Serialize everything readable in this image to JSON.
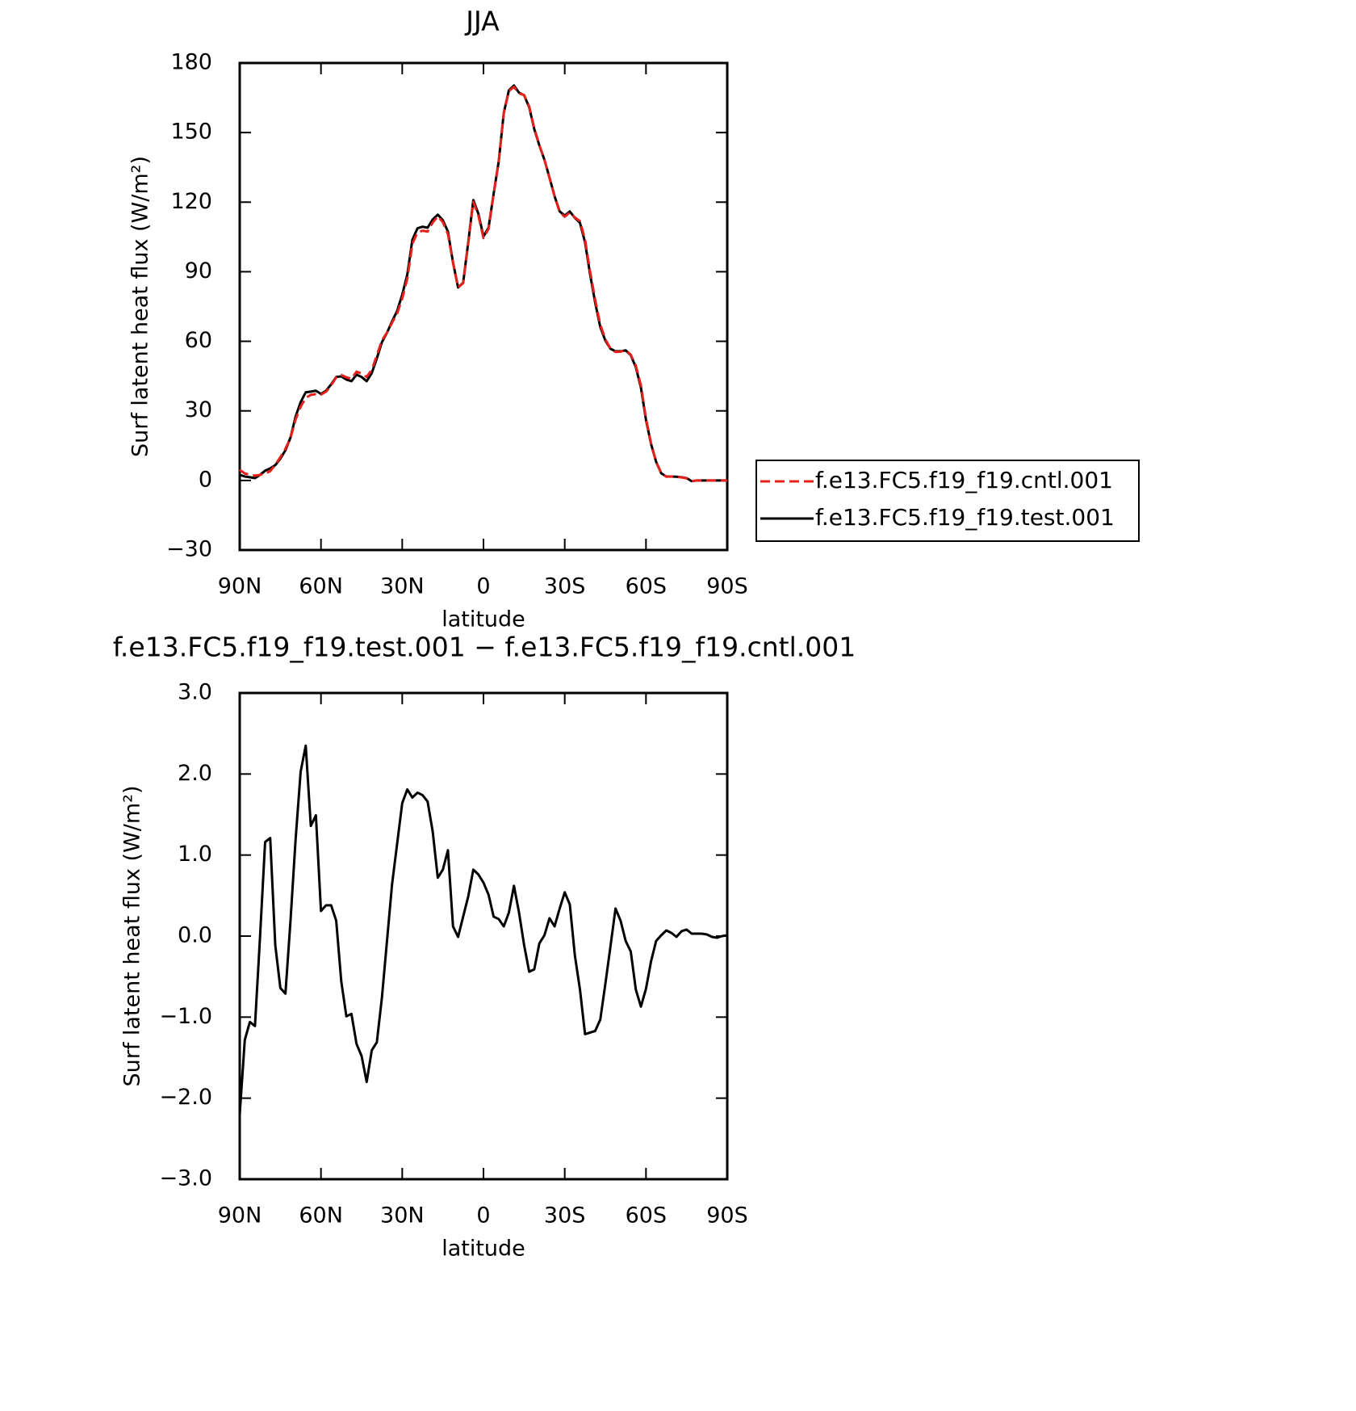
{
  "chart_data": [
    {
      "type": "line",
      "title": "JJA",
      "xlabel": "latitude",
      "ylabel": "Surf latent heat flux (W/m²)",
      "xlim": [
        90,
        -90
      ],
      "xticks": [
        {
          "value": 90,
          "label": "90N"
        },
        {
          "value": 60,
          "label": "60N"
        },
        {
          "value": 30,
          "label": "30N"
        },
        0,
        {
          "value": -30,
          "label": "30S"
        },
        {
          "value": -60,
          "label": "60S"
        },
        {
          "value": -90,
          "label": "90S"
        }
      ],
      "ylim": [
        -30,
        180
      ],
      "yticks": [
        {
          "value": -30,
          "label": "−30"
        },
        0,
        30,
        60,
        90,
        120,
        150,
        180
      ],
      "legend": "right",
      "x": [
        90,
        88.125,
        86.25,
        84.375,
        82.5,
        80.625,
        78.75,
        76.875,
        75,
        73.125,
        71.25,
        69.375,
        67.5,
        65.625,
        63.75,
        61.875,
        60,
        58.125,
        56.25,
        54.375,
        52.5,
        50.625,
        48.75,
        46.875,
        45,
        43.125,
        41.25,
        39.375,
        37.5,
        35.625,
        33.75,
        31.875,
        30,
        28.125,
        26.25,
        24.375,
        22.5,
        20.625,
        18.75,
        16.875,
        15,
        13.125,
        11.25,
        9.375,
        7.5,
        5.625,
        3.75,
        1.875,
        0,
        -1.875,
        -3.75,
        -5.625,
        -7.5,
        -9.375,
        -11.25,
        -13.125,
        -15,
        -16.875,
        -18.75,
        -20.625,
        -22.5,
        -24.375,
        -26.25,
        -28.125,
        -30,
        -31.875,
        -33.75,
        -35.625,
        -37.5,
        -39.375,
        -41.25,
        -43.125,
        -45,
        -46.875,
        -48.75,
        -50.625,
        -52.5,
        -54.375,
        -56.25,
        -58.125,
        -60,
        -61.875,
        -63.75,
        -65.625,
        -67.5,
        -69.375,
        -71.25,
        -73.125,
        -75,
        -76.875,
        -78.75,
        -80.625,
        -82.5,
        -84.375,
        -86.25,
        -88.125,
        -90
      ],
      "series": [
        {
          "name": "f.e13.FC5.f19_f19.cntl.001",
          "color": "#e8201c",
          "dash": "dashed",
          "values": [
            4.6,
            3.0,
            2.5,
            2.1,
            2.4,
            3.0,
            4.0,
            6.7,
            10.0,
            13.7,
            18.3,
            26.3,
            31.8,
            35.6,
            36.9,
            37.2,
            37.0,
            38.3,
            41.0,
            44.4,
            45.5,
            44.5,
            43.8,
            46.9,
            46.1,
            44.6,
            47.7,
            53.9,
            60.4,
            63.8,
            68.0,
            72.0,
            78.5,
            87.0,
            102.1,
            106.9,
            107.7,
            107.3,
            111.2,
            113.9,
            111.4,
            106.2,
            93.9,
            83.2,
            85.1,
            102.2,
            120.1,
            114.2,
            104.5,
            108.5,
            123.4,
            137.4,
            158.4,
            167.9,
            169.7,
            166.9,
            166.2,
            161.3,
            151.9,
            144.6,
            138.3,
            130.4,
            122.5,
            115.7,
            113.7,
            115.6,
            113.4,
            111.8,
            103.9,
            90.0,
            77.8,
            67.2,
            60.9,
            56.9,
            55.4,
            55.5,
            56.2,
            54.2,
            49.5,
            41.0,
            26.8,
            16.0,
            8.1,
            3.1,
            1.6,
            1.7,
            1.6,
            1.3,
            0.9,
            -0.3,
            0,
            0,
            0,
            0,
            0,
            0,
            0
          ]
        },
        {
          "name": "f.e13.FC5.f19_f19.test.001",
          "color": "#000000",
          "dash": "solid",
          "values": [
            2.4,
            1.7,
            1.4,
            1.0,
            2.4,
            4.2,
            5.2,
            6.6,
            9.4,
            13,
            18.5,
            27.5,
            33.8,
            38,
            38.3,
            38.7,
            37.3,
            38.7,
            41.4,
            44.6,
            44.9,
            43.5,
            42.8,
            45.6,
            44.6,
            42.8,
            46.3,
            52.6,
            59.6,
            63.7,
            68.6,
            73.1,
            80.1,
            88.8,
            103.8,
            108.7,
            109.4,
            109,
            112.5,
            114.6,
            112.2,
            107.3,
            94,
            83.2,
            85.3,
            102.7,
            120.9,
            115,
            105.2,
            109,
            123.6,
            137.6,
            158.5,
            168.2,
            170.3,
            167.2,
            166.1,
            160.9,
            151.5,
            144.5,
            138.3,
            130.6,
            122.6,
            116,
            114.2,
            116,
            113.2,
            111.1,
            102.7,
            88.8,
            76.6,
            66.2,
            60.3,
            56.8,
            55.7,
            55.7,
            56.1,
            54,
            48.8,
            40.1,
            26.1,
            15.7,
            8,
            3.1,
            1.7,
            1.7,
            1.6,
            1.4,
            1.0,
            -0.3,
            0,
            0,
            0,
            0,
            0,
            0,
            0
          ]
        }
      ]
    },
    {
      "type": "line",
      "title": "f.e13.FC5.f19_f19.test.001 − f.e13.FC5.f19_f19.cntl.001",
      "xlabel": "latitude",
      "ylabel": "Surf latent heat flux (W/m²)",
      "xlim": [
        90,
        -90
      ],
      "xticks": [
        {
          "value": 90,
          "label": "90N"
        },
        {
          "value": 60,
          "label": "60N"
        },
        {
          "value": 30,
          "label": "30N"
        },
        0,
        {
          "value": -30,
          "label": "30S"
        },
        {
          "value": -60,
          "label": "60S"
        },
        {
          "value": -90,
          "label": "90S"
        }
      ],
      "ylim": [
        -3,
        3
      ],
      "yticks": [
        {
          "value": -3,
          "label": "−3.0"
        },
        {
          "value": -2,
          "label": "−2.0"
        },
        {
          "value": -1,
          "label": "−1.0"
        },
        {
          "value": 0,
          "label": "0.0"
        },
        {
          "value": 1,
          "label": "1.0"
        },
        {
          "value": 2,
          "label": "2.0"
        },
        {
          "value": 3,
          "label": "3.0"
        }
      ],
      "x": [
        90,
        88.125,
        86.25,
        84.375,
        82.5,
        80.625,
        78.75,
        76.875,
        75,
        73.125,
        71.25,
        69.375,
        67.5,
        65.625,
        63.75,
        61.875,
        60,
        58.125,
        56.25,
        54.375,
        52.5,
        50.625,
        48.75,
        46.875,
        45,
        43.125,
        41.25,
        39.375,
        37.5,
        35.625,
        33.75,
        31.875,
        30,
        28.125,
        26.25,
        24.375,
        22.5,
        20.625,
        18.75,
        16.875,
        15,
        13.125,
        11.25,
        9.375,
        7.5,
        5.625,
        3.75,
        1.875,
        0,
        -1.875,
        -3.75,
        -5.625,
        -7.5,
        -9.375,
        -11.25,
        -13.125,
        -15,
        -16.875,
        -18.75,
        -20.625,
        -22.5,
        -24.375,
        -26.25,
        -28.125,
        -30,
        -31.875,
        -33.75,
        -35.625,
        -37.5,
        -39.375,
        -41.25,
        -43.125,
        -45,
        -46.875,
        -48.75,
        -50.625,
        -52.5,
        -54.375,
        -56.25,
        -58.125,
        -60,
        -61.875,
        -63.75,
        -65.625,
        -67.5,
        -69.375,
        -71.25,
        -73.125,
        -75,
        -76.875,
        -78.75,
        -80.625,
        -82.5,
        -84.375,
        -86.25,
        -88.125,
        -90
      ],
      "color": "#000000",
      "values": [
        -2.2,
        -1.28,
        -1.06,
        -1.11,
        -0.01,
        1.16,
        1.21,
        -0.11,
        -0.64,
        -0.71,
        0.19,
        1.19,
        2.03,
        2.35,
        1.36,
        1.49,
        0.31,
        0.38,
        0.38,
        0.19,
        -0.56,
        -0.99,
        -0.96,
        -1.33,
        -1.48,
        -1.8,
        -1.41,
        -1.31,
        -0.76,
        -0.06,
        0.64,
        1.14,
        1.64,
        1.81,
        1.71,
        1.77,
        1.74,
        1.66,
        1.29,
        0.72,
        0.82,
        1.06,
        0.12,
        -0.01,
        0.24,
        0.49,
        0.82,
        0.76,
        0.66,
        0.51,
        0.24,
        0.21,
        0.12,
        0.29,
        0.62,
        0.29,
        -0.11,
        -0.44,
        -0.41,
        -0.09,
        0.01,
        0.22,
        0.12,
        0.34,
        0.54,
        0.39,
        -0.24,
        -0.66,
        -1.21,
        -1.19,
        -1.17,
        -1.03,
        -0.59,
        -0.13,
        0.34,
        0.19,
        -0.06,
        -0.19,
        -0.66,
        -0.87,
        -0.65,
        -0.31,
        -0.06,
        0.01,
        0.07,
        0.04,
        -0.01,
        0.06,
        0.08,
        0.03,
        0.03,
        0.03,
        0.02,
        -0.01,
        -0.02,
        0.0,
        0.01
      ]
    }
  ]
}
